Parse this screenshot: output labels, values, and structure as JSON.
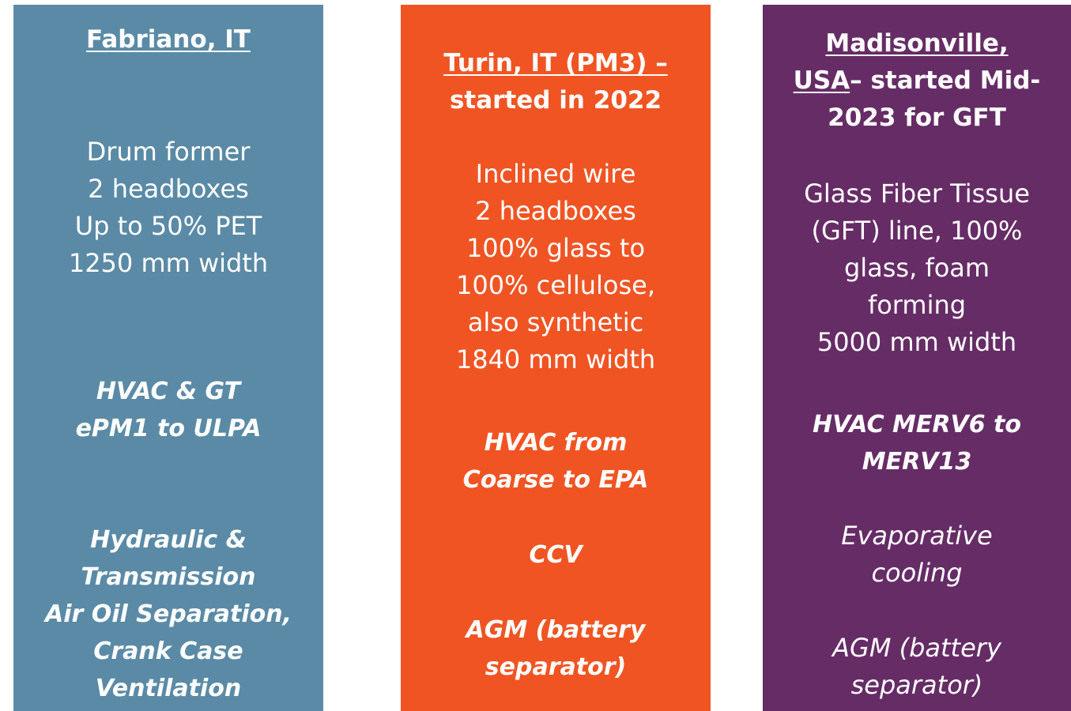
{
  "columns": [
    {
      "color": "#5a8aa6",
      "title": [
        [
          {
            "text": "Fabriano, IT",
            "underline": true
          }
        ]
      ],
      "blocks": [
        {
          "style": "regular",
          "lines": [
            "Drum former",
            "2 headboxes",
            "Up to 50% PET",
            "1250 mm width"
          ]
        },
        {
          "style": "bold-italic",
          "lines": [
            "HVAC & GT",
            "ePM1 to ULPA"
          ]
        },
        {
          "style": "bold-italic",
          "lines": [
            "Hydraulic &",
            "Transmission",
            "Air Oil Separation,",
            "Crank Case",
            "Ventilation"
          ]
        }
      ]
    },
    {
      "color": "#f05423",
      "title": [
        [
          {
            "text": "Turin, IT (PM3) –",
            "underline": true
          }
        ],
        [
          {
            "text": "started in 2022",
            "underline": false
          }
        ]
      ],
      "blocks": [
        {
          "style": "regular",
          "lines": [
            "Inclined wire",
            "2 headboxes",
            "100% glass to",
            "100% cellulose,",
            "also synthetic",
            "1840 mm width"
          ]
        },
        {
          "style": "bold-italic",
          "lines": [
            "HVAC from",
            "Coarse to EPA"
          ]
        },
        {
          "style": "bold-italic",
          "lines": [
            "CCV"
          ]
        },
        {
          "style": "bold-italic",
          "lines": [
            "AGM (battery",
            "separator)"
          ]
        }
      ]
    },
    {
      "color": "#662c66",
      "title": [
        [
          {
            "text": "Madisonville,",
            "underline": true
          }
        ],
        [
          {
            "text": "USA",
            "underline": true
          },
          {
            "text": "– started Mid-",
            "underline": false
          }
        ],
        [
          {
            "text": "2023 for GFT",
            "underline": false
          }
        ]
      ],
      "blocks": [
        {
          "style": "regular",
          "lines": [
            "Glass Fiber Tissue",
            "(GFT) line, 100%",
            "glass, foam",
            "forming",
            "5000 mm width"
          ]
        },
        {
          "style": "bold-italic",
          "lines": [
            "HVAC MERV6 to",
            "MERV13"
          ]
        },
        {
          "style": "italic",
          "lines": [
            "Evaporative",
            "cooling"
          ]
        },
        {
          "style": "italic",
          "lines": [
            "AGM (battery",
            "separator)"
          ]
        }
      ]
    }
  ]
}
